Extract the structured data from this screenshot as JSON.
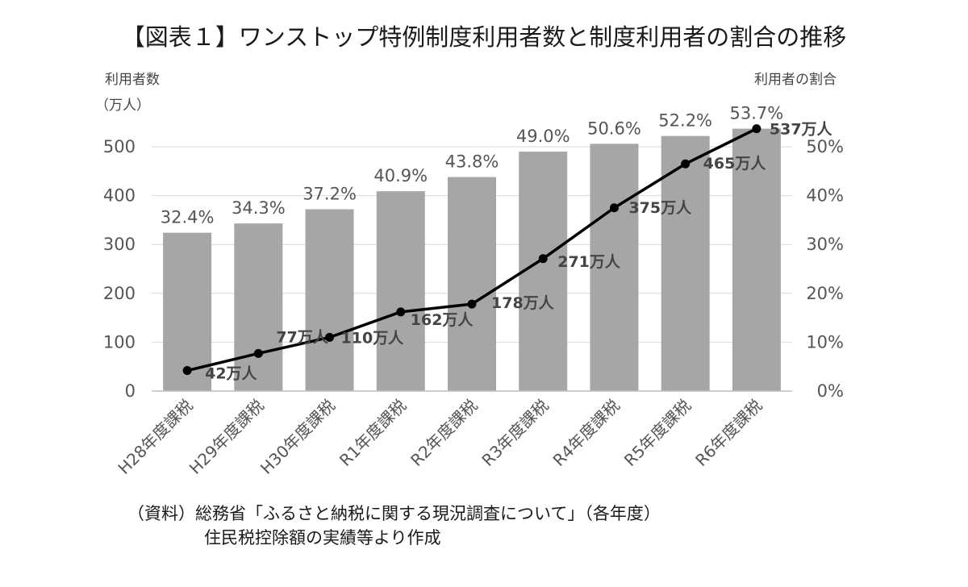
{
  "chart_data": {
    "type": "bar+line",
    "title": "【図表１】ワンストップ特例制度利用者数と制度利用者の割合の推移",
    "left_axis": {
      "label": "利用者数",
      "unit": "（万人）",
      "min": 0,
      "max": 500,
      "ticks": [
        "0",
        "100",
        "200",
        "300",
        "400",
        "500"
      ]
    },
    "right_axis": {
      "label": "利用者の割合",
      "min": 0,
      "max": 50,
      "ticks": [
        "0%",
        "10%",
        "20%",
        "30%",
        "40%",
        "50%"
      ]
    },
    "categories": [
      "H28年度課税",
      "H29年度課税",
      "H30年度課税",
      "R1年度課税",
      "R2年度課税",
      "R3年度課税",
      "R4年度課税",
      "R5年度課税",
      "R6年度課税"
    ],
    "bars": {
      "name": "制度利用者の割合",
      "axis": "right",
      "values": [
        32.4,
        34.3,
        37.2,
        40.9,
        43.8,
        49.0,
        50.6,
        52.2,
        53.7
      ],
      "labels": [
        "32.4%",
        "34.3%",
        "37.2%",
        "40.9%",
        "43.8%",
        "49.0%",
        "50.6%",
        "52.2%",
        "53.7%"
      ],
      "color": "#a6a6a6"
    },
    "line": {
      "name": "ワンストップ特例制度利用者数",
      "axis": "left",
      "values": [
        42,
        77,
        110,
        162,
        178,
        271,
        375,
        465,
        537
      ],
      "labels": [
        "42万人",
        "77万人",
        "110万人",
        "162万人",
        "178万人",
        "271万人",
        "375万人",
        "465万人",
        "537万人"
      ],
      "color": "#000000"
    },
    "gridlines": true
  },
  "source": {
    "line1": "（資料）総務省「ふるさと納税に関する現況調査について」（各年度）",
    "line2": "住民税控除額の実績等より作成"
  }
}
